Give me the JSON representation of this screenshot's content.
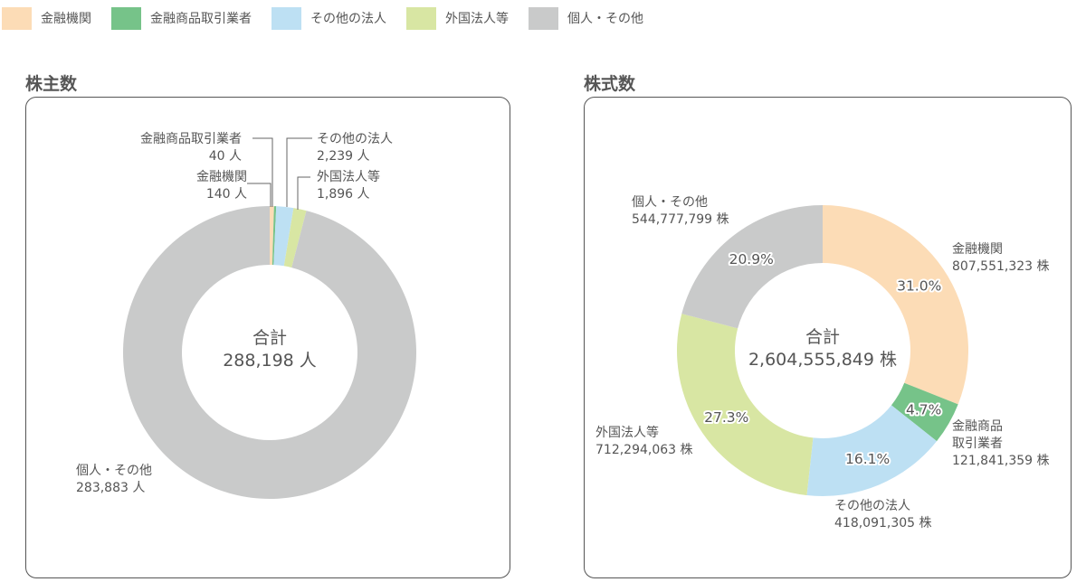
{
  "legend": [
    {
      "label": "金融機関",
      "color": "#fcdcb6"
    },
    {
      "label": "金融商品取引業者",
      "color": "#76c389"
    },
    {
      "label": "その他の法人",
      "color": "#bde0f3"
    },
    {
      "label": "外国法人等",
      "color": "#d8e6a3"
    },
    {
      "label": "個人・その他",
      "color": "#c9caca"
    }
  ],
  "shareholders": {
    "title": "株主数",
    "total_label": "合計",
    "total_value": "288,198 人",
    "labels": {
      "financial_institutions": {
        "name": "金融機関",
        "value": "140 人"
      },
      "securities_firms": {
        "name": "金融商品取引業者",
        "value": "40 人"
      },
      "other_corporations": {
        "name": "その他の法人",
        "value": "2,239 人"
      },
      "foreign_corporations": {
        "name": "外国法人等",
        "value": "1,896 人"
      },
      "individuals": {
        "name": "個人・その他",
        "value": "283,883 人"
      }
    }
  },
  "shares": {
    "title": "株式数",
    "total_label": "合計",
    "total_value": "2,604,555,849 株",
    "labels": {
      "financial_institutions": {
        "name": "金融機関",
        "value": "807,551,323 株",
        "pct": "31.0%"
      },
      "securities_firms": {
        "name_line1": "金融商品",
        "name_line2": "取引業者",
        "value": "121,841,359 株",
        "pct": "4.7%"
      },
      "other_corporations": {
        "name": "その他の法人",
        "value": "418,091,305 株",
        "pct": "16.1%"
      },
      "foreign_corporations": {
        "name": "外国法人等",
        "value": "712,294,063 株",
        "pct": "27.3%"
      },
      "individuals": {
        "name": "個人・その他",
        "value": "544,777,799 株",
        "pct": "20.9%"
      }
    }
  },
  "chart_data": [
    {
      "type": "pie",
      "title": "株主数",
      "subtype": "donut",
      "categories": [
        "金融機関",
        "金融商品取引業者",
        "その他の法人",
        "外国法人等",
        "個人・その他"
      ],
      "values": [
        140,
        40,
        2239,
        1896,
        283883
      ],
      "unit": "人",
      "total": 288198,
      "colors": [
        "#fcdcb6",
        "#76c389",
        "#bde0f3",
        "#d8e6a3",
        "#c9caca"
      ],
      "legend_position": "top"
    },
    {
      "type": "pie",
      "title": "株式数",
      "subtype": "donut",
      "categories": [
        "金融機関",
        "金融商品取引業者",
        "その他の法人",
        "外国法人等",
        "個人・その他"
      ],
      "values": [
        807551323,
        121841359,
        418091305,
        712294063,
        544777799
      ],
      "percentages": [
        31.0,
        4.7,
        16.1,
        27.3,
        20.9
      ],
      "unit": "株",
      "total": 2604555849,
      "colors": [
        "#fcdcb6",
        "#76c389",
        "#bde0f3",
        "#d8e6a3",
        "#c9caca"
      ],
      "legend_position": "top"
    }
  ]
}
